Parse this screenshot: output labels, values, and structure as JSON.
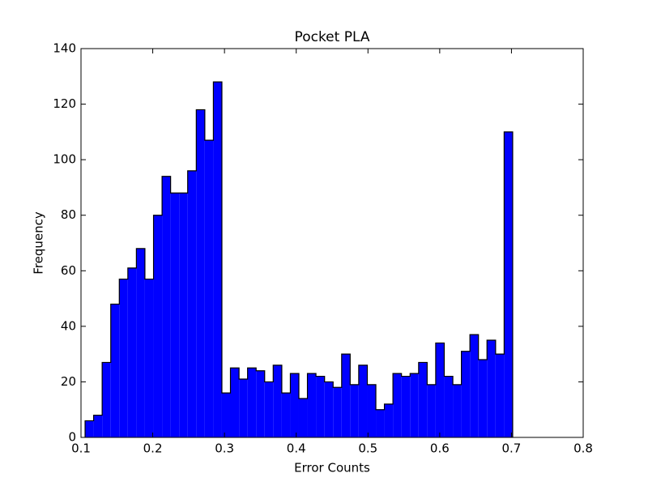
{
  "chart_data": {
    "type": "histogram",
    "title": "Pocket PLA",
    "x_label": "Error Counts",
    "y_label": "Frequency",
    "bins": [
      0.1057,
      0.1176,
      0.1295,
      0.1415,
      0.1534,
      0.1653,
      0.1772,
      0.1891,
      0.2011,
      0.213,
      0.2249,
      0.2368,
      0.2487,
      0.2607,
      0.2726,
      0.2845,
      0.2964,
      0.3083,
      0.3203,
      0.3322,
      0.3441,
      0.356,
      0.3679,
      0.3799,
      0.3918,
      0.4037,
      0.4156,
      0.4275,
      0.4395,
      0.4514,
      0.4633,
      0.4752,
      0.4871,
      0.4991,
      0.511,
      0.5229,
      0.5348,
      0.5467,
      0.5587,
      0.5706,
      0.5825,
      0.5944,
      0.6063,
      0.6183,
      0.6302,
      0.6421,
      0.654,
      0.6659,
      0.6779,
      0.6898,
      0.7017
    ],
    "values": [
      6,
      8,
      27,
      48,
      57,
      61,
      68,
      57,
      80,
      94,
      88,
      88,
      96,
      118,
      107,
      128,
      16,
      25,
      21,
      25,
      24,
      20,
      26,
      16,
      23,
      14,
      23,
      22,
      20,
      18,
      30,
      19,
      26,
      19,
      10,
      12,
      23,
      22,
      23,
      27,
      19,
      34,
      22,
      19,
      31,
      37,
      28,
      35,
      30,
      110
    ],
    "color": "#0000ff",
    "xlim": [
      0.1,
      0.8
    ],
    "xticks": [
      0.1,
      0.2,
      0.3,
      0.4,
      0.5,
      0.6,
      0.7,
      0.8
    ],
    "ylim": [
      0,
      140
    ],
    "yticks": [
      0,
      20,
      40,
      60,
      80,
      100,
      120,
      140
    ]
  }
}
